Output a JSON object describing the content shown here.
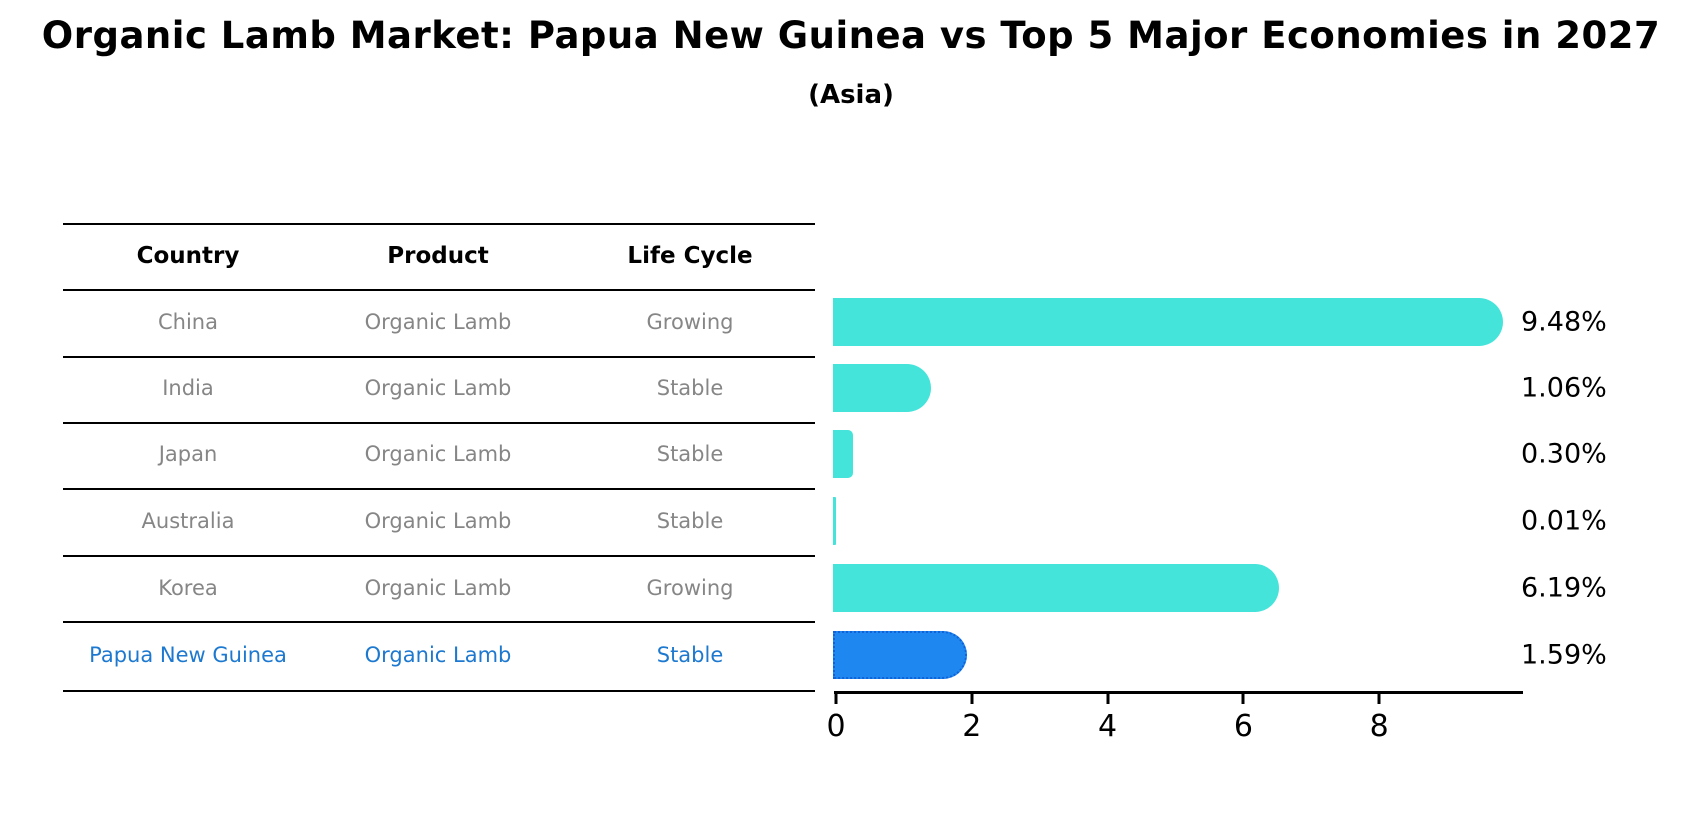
{
  "title": "Organic Lamb Market: Papua New Guinea vs Top 5 Major Economies in 2027",
  "subtitle": "(Asia)",
  "table": {
    "headers": [
      "Country",
      "Product",
      "Life Cycle"
    ],
    "rows": [
      {
        "country": "China",
        "product": "Organic Lamb",
        "life_cycle": "Growing",
        "highlighted": false
      },
      {
        "country": "India",
        "product": "Organic Lamb",
        "life_cycle": "Stable",
        "highlighted": false
      },
      {
        "country": "Japan",
        "product": "Organic Lamb",
        "life_cycle": "Stable",
        "highlighted": false
      },
      {
        "country": "Australia",
        "product": "Organic Lamb",
        "life_cycle": "Stable",
        "highlighted": false
      },
      {
        "country": "Korea",
        "product": "Organic Lamb",
        "life_cycle": "Growing",
        "highlighted": false
      },
      {
        "country": "Papua New Guinea",
        "product": "Organic Lamb",
        "life_cycle": "Stable",
        "highlighted": true
      }
    ]
  },
  "chart_data": {
    "type": "bar",
    "orientation": "horizontal",
    "title": "Organic Lamb Market: Papua New Guinea vs Top 5 Major Economies in 2027",
    "subtitle": "(Asia)",
    "categories": [
      "China",
      "India",
      "Japan",
      "Australia",
      "Korea",
      "Papua New Guinea"
    ],
    "values": [
      9.48,
      1.06,
      0.3,
      0.01,
      6.19,
      1.59
    ],
    "value_labels": [
      "9.48%",
      "1.06%",
      "0.30%",
      "0.01%",
      "6.19%",
      "1.59%"
    ],
    "xlabel": "",
    "ylabel": "",
    "xlim": [
      0,
      10.1
    ],
    "xticks": [
      "0",
      "2",
      "4",
      "6",
      "8"
    ],
    "xtick_values": [
      0,
      2,
      4,
      6,
      8
    ],
    "grid": false,
    "legend": false,
    "bar_color": "#44e4da",
    "highlight_color": "#1e88f0",
    "highlight_edge_color": "#0f62d8",
    "highlight_index": 5,
    "highlight_text_color": "#1d79d0"
  }
}
